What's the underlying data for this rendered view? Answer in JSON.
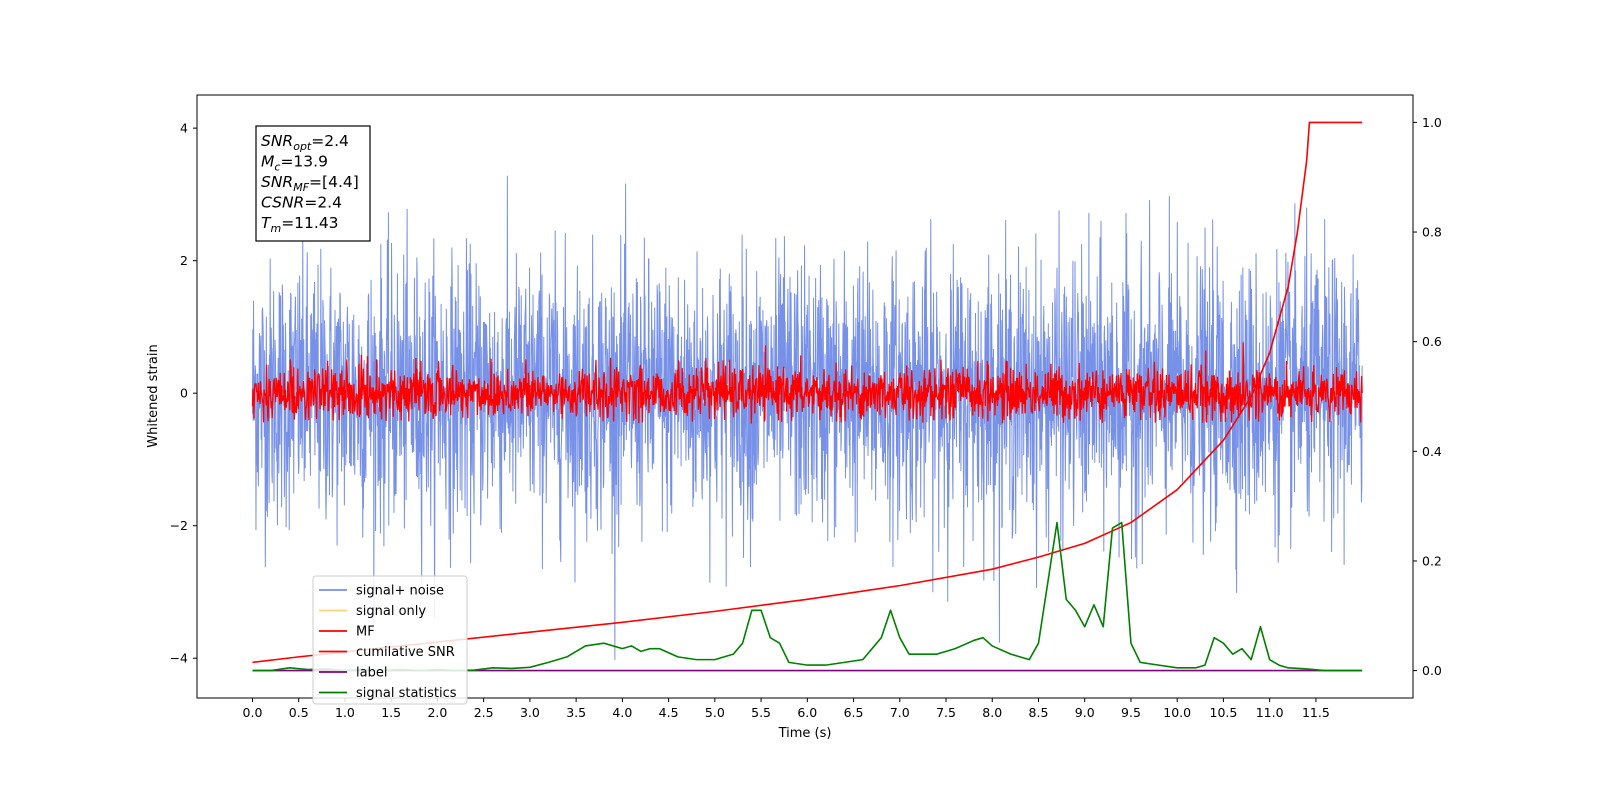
{
  "chart_data": {
    "type": "line",
    "xlabel": "Time (s)",
    "ylabel": "Whitened strain",
    "xlim": [
      -0.6,
      12.55
    ],
    "ylim": [
      -4.6,
      4.5
    ],
    "y2lim": [
      -0.05,
      1.05
    ],
    "grid": false,
    "legend_position": "lower-left",
    "x_ticks": [
      "0.0",
      "0.5",
      "1.0",
      "1.5",
      "2.0",
      "2.5",
      "3.0",
      "3.5",
      "4.0",
      "4.5",
      "5.0",
      "5.5",
      "6.0",
      "6.5",
      "7.0",
      "7.5",
      "8.0",
      "8.5",
      "9.0",
      "9.5",
      "10.0",
      "10.5",
      "11.0",
      "11.5"
    ],
    "y_ticks": [
      "4",
      "2",
      "0",
      "−2",
      "−4"
    ],
    "y_ticks_values": [
      4,
      2,
      0,
      -2,
      -4
    ],
    "y2_ticks": [
      "1.0",
      "0.8",
      "0.6",
      "0.4",
      "0.2",
      "0.0"
    ],
    "y2_ticks_values": [
      1.0,
      0.8,
      0.6,
      0.4,
      0.2,
      0.0
    ],
    "annotation": {
      "lines": [
        {
          "base": "SNR",
          "sub": "opt",
          "value": "=2.4"
        },
        {
          "base": "M",
          "sub": "c",
          "value": "=13.9"
        },
        {
          "base": "SNR",
          "sub": "MF",
          "value": "=[4.4]"
        },
        {
          "base": "CSNR",
          "sub": "",
          "value": "=2.4"
        },
        {
          "base": "T",
          "sub": "m",
          "value": "=11.43"
        }
      ]
    },
    "series": [
      {
        "name": "signal+ noise",
        "color": "#7791e8",
        "axis": "left",
        "style": "noise",
        "x_range": [
          0.0,
          12.0
        ],
        "y_mean": 0.0,
        "y_std": 1.0,
        "y_min": -4.1,
        "y_max": 4.1
      },
      {
        "name": "signal only",
        "color": "#ffd27a",
        "axis": "left",
        "values": []
      },
      {
        "name": "MF",
        "color": "#ff0000",
        "axis": "left",
        "style": "noise",
        "x_range": [
          0.0,
          12.0
        ],
        "y_mean": 0.0,
        "y_std": 0.2,
        "y_min": -0.45,
        "y_max": 0.9
      },
      {
        "name": "cumilative SNR",
        "color": "#ff0000",
        "axis": "right",
        "x": [
          0.0,
          0.5,
          1.0,
          2.0,
          3.0,
          4.0,
          5.0,
          6.0,
          7.0,
          8.0,
          8.5,
          9.0,
          9.5,
          10.0,
          10.5,
          10.8,
          11.0,
          11.2,
          11.3,
          11.4,
          11.43,
          11.5,
          12.0
        ],
        "y": [
          0.015,
          0.025,
          0.034,
          0.052,
          0.07,
          0.088,
          0.108,
          0.13,
          0.155,
          0.185,
          0.207,
          0.232,
          0.27,
          0.33,
          0.42,
          0.5,
          0.58,
          0.7,
          0.8,
          0.93,
          1.0,
          1.0,
          1.0
        ]
      },
      {
        "name": "label",
        "color": "#800080",
        "axis": "right",
        "x": [
          0.0,
          12.0
        ],
        "y": [
          0.0,
          0.0
        ]
      },
      {
        "name": "signal statistics",
        "color": "#008000",
        "axis": "right",
        "x": [
          0.0,
          0.2,
          0.4,
          0.6,
          0.8,
          1.0,
          1.2,
          1.4,
          1.6,
          1.8,
          2.0,
          2.2,
          2.4,
          2.6,
          2.8,
          3.0,
          3.2,
          3.4,
          3.5,
          3.6,
          3.8,
          4.0,
          4.1,
          4.2,
          4.3,
          4.4,
          4.6,
          4.8,
          5.0,
          5.2,
          5.3,
          5.4,
          5.5,
          5.6,
          5.7,
          5.8,
          6.0,
          6.2,
          6.4,
          6.6,
          6.8,
          6.9,
          7.0,
          7.1,
          7.2,
          7.4,
          7.6,
          7.8,
          7.9,
          8.0,
          8.2,
          8.4,
          8.5,
          8.6,
          8.7,
          8.8,
          8.9,
          9.0,
          9.1,
          9.2,
          9.3,
          9.4,
          9.5,
          9.6,
          9.8,
          10.0,
          10.2,
          10.3,
          10.4,
          10.5,
          10.6,
          10.7,
          10.8,
          10.9,
          11.0,
          11.1,
          11.2,
          11.4,
          11.6,
          11.8,
          12.0
        ],
        "y": [
          0.0,
          0.0,
          0.005,
          0.002,
          0.003,
          0.0,
          0.002,
          0.0,
          0.002,
          0.0,
          0.002,
          0.0,
          0.001,
          0.005,
          0.004,
          0.006,
          0.015,
          0.025,
          0.035,
          0.045,
          0.05,
          0.04,
          0.045,
          0.035,
          0.04,
          0.04,
          0.025,
          0.02,
          0.02,
          0.03,
          0.05,
          0.11,
          0.11,
          0.06,
          0.05,
          0.015,
          0.01,
          0.01,
          0.015,
          0.02,
          0.06,
          0.11,
          0.06,
          0.03,
          0.03,
          0.03,
          0.04,
          0.055,
          0.06,
          0.045,
          0.03,
          0.02,
          0.05,
          0.16,
          0.27,
          0.13,
          0.11,
          0.08,
          0.12,
          0.08,
          0.26,
          0.27,
          0.05,
          0.015,
          0.01,
          0.005,
          0.005,
          0.01,
          0.06,
          0.05,
          0.03,
          0.04,
          0.02,
          0.08,
          0.02,
          0.01,
          0.005,
          0.003,
          0.0,
          0.0,
          0.0
        ]
      }
    ]
  }
}
